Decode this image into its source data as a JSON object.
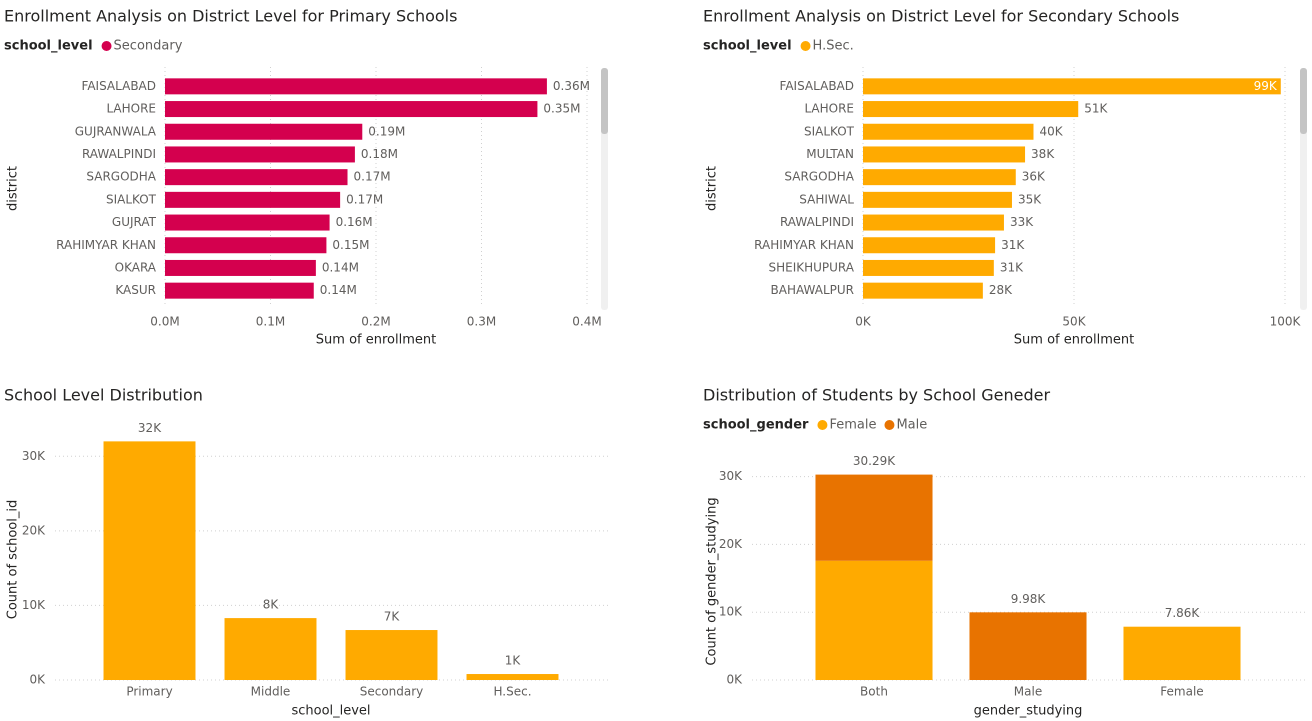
{
  "chart_data": [
    {
      "type": "bar",
      "orientation": "horizontal",
      "title": "Enrollment Analysis on District Level for Primary Schools",
      "legend_title": "school_level",
      "x_label": "Sum of enrollment",
      "y_label": "district",
      "categories": [
        "FAISALABAD",
        "LAHORE",
        "GUJRANWALA",
        "RAWALPINDI",
        "SARGODHA",
        "SIALKOT",
        "GUJRAT",
        "RAHIMYAR KHAN",
        "OKARA",
        "KASUR"
      ],
      "series": [
        {
          "name": "Secondary",
          "color": "#D4004E",
          "values": [
            362000,
            353000,
            187000,
            180000,
            173000,
            166000,
            156000,
            153000,
            143000,
            141000
          ],
          "value_labels": [
            "0.36M",
            "0.35M",
            "0.19M",
            "0.18M",
            "0.17M",
            "0.17M",
            "0.16M",
            "0.15M",
            "0.14M",
            "0.14M"
          ]
        }
      ],
      "xlim": [
        0,
        400000
      ],
      "xticks": [
        {
          "value": 0,
          "label": "0.0M"
        },
        {
          "value": 100000,
          "label": "0.1M"
        },
        {
          "value": 200000,
          "label": "0.2M"
        },
        {
          "value": 300000,
          "label": "0.3M"
        },
        {
          "value": 400000,
          "label": "0.4M"
        }
      ],
      "grid": true
    },
    {
      "type": "bar",
      "orientation": "horizontal",
      "title": "Enrollment Analysis on District Level for Secondary Schools",
      "legend_title": "school_level",
      "x_label": "Sum of enrollment",
      "y_label": "district",
      "categories": [
        "FAISALABAD",
        "LAHORE",
        "SIALKOT",
        "MULTAN",
        "SARGODHA",
        "SAHIWAL",
        "RAWALPINDI",
        "RAHIMYAR KHAN",
        "SHEIKHUPURA",
        "BAHAWALPUR"
      ],
      "series": [
        {
          "name": "H.Sec.",
          "color": "#FFAA00",
          "values": [
            99000,
            51000,
            40400,
            38400,
            36200,
            35300,
            33400,
            31300,
            31000,
            28400
          ],
          "value_labels": [
            "99K",
            "51K",
            "40K",
            "38K",
            "36K",
            "35K",
            "33K",
            "31K",
            "31K",
            "28K"
          ]
        }
      ],
      "xlim": [
        0,
        100000
      ],
      "xticks": [
        {
          "value": 0,
          "label": "0K"
        },
        {
          "value": 50000,
          "label": "50K"
        },
        {
          "value": 100000,
          "label": "100K"
        }
      ],
      "grid": true
    },
    {
      "type": "bar",
      "orientation": "vertical",
      "title": "School Level Distribution",
      "x_label": "school_level",
      "y_label": "Count of school_id",
      "categories": [
        "Primary",
        "Middle",
        "Secondary",
        "H.Sec."
      ],
      "series": [
        {
          "color": "#FFAA00",
          "values": [
            32000,
            8300,
            6700,
            800
          ],
          "value_labels": [
            "32K",
            "8K",
            "7K",
            "1K"
          ]
        }
      ],
      "ylim": [
        0,
        35000
      ],
      "yticks": [
        {
          "value": 0,
          "label": "0K"
        },
        {
          "value": 10000,
          "label": "10K"
        },
        {
          "value": 20000,
          "label": "20K"
        },
        {
          "value": 30000,
          "label": "30K"
        }
      ],
      "grid": true
    },
    {
      "type": "bar",
      "orientation": "vertical",
      "stacked": true,
      "title": "Distribution of Students by School Geneder",
      "legend_title": "school_gender",
      "x_label": "gender_studying",
      "y_label": "Count of gender_studying",
      "categories": [
        "Both",
        "Male",
        "Female"
      ],
      "series": [
        {
          "name": "Female",
          "color": "#FFAA00",
          "values": [
            17580,
            null,
            7860
          ]
        },
        {
          "name": "Male",
          "color": "#E87300",
          "values": [
            12710,
            9980,
            null
          ]
        }
      ],
      "totals": [
        30290,
        9980,
        7860
      ],
      "total_labels": [
        "30.29K",
        "9.98K",
        "7.86K"
      ],
      "ylim": [
        0,
        32000
      ],
      "yticks": [
        {
          "value": 0,
          "label": "0K"
        },
        {
          "value": 10000,
          "label": "10K"
        },
        {
          "value": 20000,
          "label": "20K"
        },
        {
          "value": 30000,
          "label": "30K"
        }
      ],
      "grid": true
    }
  ]
}
